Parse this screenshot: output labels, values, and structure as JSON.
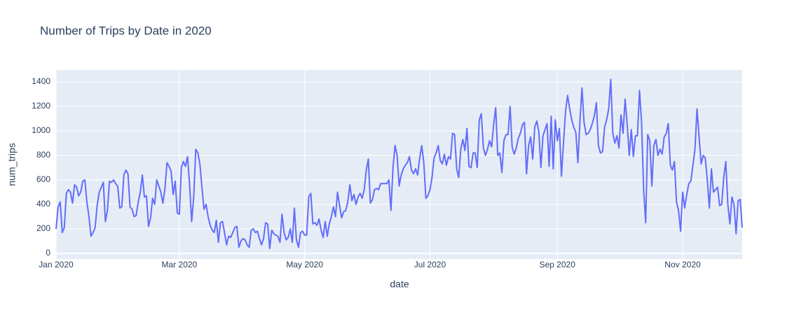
{
  "chart_data": {
    "type": "line",
    "title": "Number of Trips by Date in 2020",
    "x_label": "date",
    "y_label": "num_trips",
    "x": [
      "2020-01-01",
      "2020-01-02",
      "2020-01-03",
      "2020-01-04",
      "2020-01-05",
      "2020-01-06",
      "2020-01-07",
      "2020-01-08",
      "2020-01-09",
      "2020-01-10",
      "2020-01-11",
      "2020-01-12",
      "2020-01-13",
      "2020-01-14",
      "2020-01-15",
      "2020-01-16",
      "2020-01-17",
      "2020-01-18",
      "2020-01-19",
      "2020-01-20",
      "2020-01-21",
      "2020-01-22",
      "2020-01-23",
      "2020-01-24",
      "2020-01-25",
      "2020-01-26",
      "2020-01-27",
      "2020-01-28",
      "2020-01-29",
      "2020-01-30",
      "2020-01-31",
      "2020-02-01",
      "2020-02-02",
      "2020-02-03",
      "2020-02-04",
      "2020-02-05",
      "2020-02-06",
      "2020-02-07",
      "2020-02-08",
      "2020-02-09",
      "2020-02-10",
      "2020-02-11",
      "2020-02-12",
      "2020-02-13",
      "2020-02-14",
      "2020-02-15",
      "2020-02-16",
      "2020-02-17",
      "2020-02-18",
      "2020-02-19",
      "2020-02-20",
      "2020-02-21",
      "2020-02-22",
      "2020-02-23",
      "2020-02-24",
      "2020-02-25",
      "2020-02-26",
      "2020-02-27",
      "2020-02-28",
      "2020-02-29",
      "2020-03-01",
      "2020-03-02",
      "2020-03-03",
      "2020-03-04",
      "2020-03-05",
      "2020-03-06",
      "2020-03-07",
      "2020-03-08",
      "2020-03-09",
      "2020-03-10",
      "2020-03-11",
      "2020-03-12",
      "2020-03-13",
      "2020-03-14",
      "2020-03-15",
      "2020-03-16",
      "2020-03-17",
      "2020-03-18",
      "2020-03-19",
      "2020-03-20",
      "2020-03-21",
      "2020-03-22",
      "2020-03-23",
      "2020-03-24",
      "2020-03-25",
      "2020-03-26",
      "2020-03-27",
      "2020-03-28",
      "2020-03-29",
      "2020-03-30",
      "2020-03-31",
      "2020-04-01",
      "2020-04-02",
      "2020-04-03",
      "2020-04-04",
      "2020-04-05",
      "2020-04-06",
      "2020-04-07",
      "2020-04-08",
      "2020-04-09",
      "2020-04-10",
      "2020-04-11",
      "2020-04-12",
      "2020-04-13",
      "2020-04-14",
      "2020-04-15",
      "2020-04-16",
      "2020-04-17",
      "2020-04-18",
      "2020-04-19",
      "2020-04-20",
      "2020-04-21",
      "2020-04-22",
      "2020-04-23",
      "2020-04-24",
      "2020-04-25",
      "2020-04-26",
      "2020-04-27",
      "2020-04-28",
      "2020-04-29",
      "2020-04-30",
      "2020-05-01",
      "2020-05-02",
      "2020-05-03",
      "2020-05-04",
      "2020-05-05",
      "2020-05-06",
      "2020-05-07",
      "2020-05-08",
      "2020-05-09",
      "2020-05-10",
      "2020-05-11",
      "2020-05-12",
      "2020-05-13",
      "2020-05-14",
      "2020-05-15",
      "2020-05-16",
      "2020-05-17",
      "2020-05-18",
      "2020-05-19",
      "2020-05-20",
      "2020-05-21",
      "2020-05-22",
      "2020-05-23",
      "2020-05-24",
      "2020-05-25",
      "2020-05-26",
      "2020-05-27",
      "2020-05-28",
      "2020-05-29",
      "2020-05-30",
      "2020-05-31",
      "2020-06-01",
      "2020-06-02",
      "2020-06-03",
      "2020-06-04",
      "2020-06-05",
      "2020-06-06",
      "2020-06-07",
      "2020-06-08",
      "2020-06-09",
      "2020-06-10",
      "2020-06-11",
      "2020-06-12",
      "2020-06-13",
      "2020-06-14",
      "2020-06-15",
      "2020-06-16",
      "2020-06-17",
      "2020-06-18",
      "2020-06-19",
      "2020-06-20",
      "2020-06-21",
      "2020-06-22",
      "2020-06-23",
      "2020-06-24",
      "2020-06-25",
      "2020-06-26",
      "2020-06-27",
      "2020-06-28",
      "2020-06-29",
      "2020-06-30",
      "2020-07-01",
      "2020-07-02",
      "2020-07-03",
      "2020-07-04",
      "2020-07-05",
      "2020-07-06",
      "2020-07-07",
      "2020-07-08",
      "2020-07-09",
      "2020-07-10",
      "2020-07-11",
      "2020-07-12",
      "2020-07-13",
      "2020-07-14",
      "2020-07-15",
      "2020-07-16",
      "2020-07-17",
      "2020-07-18",
      "2020-07-19",
      "2020-07-20",
      "2020-07-21",
      "2020-07-22",
      "2020-07-23",
      "2020-07-24",
      "2020-07-25",
      "2020-07-26",
      "2020-07-27",
      "2020-07-28",
      "2020-07-29",
      "2020-07-30",
      "2020-07-31",
      "2020-08-01",
      "2020-08-02",
      "2020-08-03",
      "2020-08-04",
      "2020-08-05",
      "2020-08-06",
      "2020-08-07",
      "2020-08-08",
      "2020-08-09",
      "2020-08-10",
      "2020-08-11",
      "2020-08-12",
      "2020-08-13",
      "2020-08-14",
      "2020-08-15",
      "2020-08-16",
      "2020-08-17",
      "2020-08-18",
      "2020-08-19",
      "2020-08-20",
      "2020-08-21",
      "2020-08-22",
      "2020-08-23",
      "2020-08-24",
      "2020-08-25",
      "2020-08-26",
      "2020-08-27",
      "2020-08-28",
      "2020-08-29",
      "2020-08-30",
      "2020-08-31",
      "2020-09-01",
      "2020-09-02",
      "2020-09-03",
      "2020-09-04",
      "2020-09-05",
      "2020-09-06",
      "2020-09-07",
      "2020-09-08",
      "2020-09-09",
      "2020-09-10",
      "2020-09-11",
      "2020-09-12",
      "2020-09-13",
      "2020-09-14",
      "2020-09-15",
      "2020-09-16",
      "2020-09-17",
      "2020-09-18",
      "2020-09-19",
      "2020-09-20",
      "2020-09-21",
      "2020-09-22",
      "2020-09-23",
      "2020-09-24",
      "2020-09-25",
      "2020-09-26",
      "2020-09-27",
      "2020-09-28",
      "2020-09-29",
      "2020-09-30",
      "2020-10-01",
      "2020-10-02",
      "2020-10-03",
      "2020-10-04",
      "2020-10-05",
      "2020-10-06",
      "2020-10-07",
      "2020-10-08",
      "2020-10-09",
      "2020-10-10",
      "2020-10-11",
      "2020-10-12",
      "2020-10-13",
      "2020-10-14",
      "2020-10-15",
      "2020-10-16",
      "2020-10-17",
      "2020-10-18",
      "2020-10-19",
      "2020-10-20",
      "2020-10-21",
      "2020-10-22",
      "2020-10-23",
      "2020-10-24",
      "2020-10-25",
      "2020-10-26",
      "2020-10-27",
      "2020-10-28",
      "2020-10-29",
      "2020-10-30",
      "2020-10-31",
      "2020-11-01",
      "2020-11-02",
      "2020-11-03",
      "2020-11-04",
      "2020-11-05",
      "2020-11-06",
      "2020-11-07",
      "2020-11-08",
      "2020-11-09",
      "2020-11-10",
      "2020-11-11",
      "2020-11-12",
      "2020-11-13",
      "2020-11-14",
      "2020-11-15",
      "2020-11-16",
      "2020-11-17",
      "2020-11-18",
      "2020-11-19",
      "2020-11-20",
      "2020-11-21",
      "2020-11-22",
      "2020-11-23",
      "2020-11-24",
      "2020-11-25",
      "2020-11-26",
      "2020-11-27",
      "2020-11-28",
      "2020-11-29",
      "2020-11-30"
    ],
    "series": [
      {
        "name": "num_trips",
        "color": "#636efa",
        "values": [
          200,
          380,
          420,
          170,
          210,
          490,
          520,
          500,
          410,
          560,
          540,
          470,
          500,
          590,
          600,
          420,
          300,
          140,
          170,
          210,
          390,
          500,
          540,
          580,
          260,
          350,
          590,
          580,
          600,
          570,
          550,
          370,
          380,
          640,
          680,
          650,
          380,
          360,
          300,
          310,
          420,
          500,
          640,
          460,
          470,
          220,
          290,
          450,
          400,
          600,
          550,
          500,
          410,
          530,
          740,
          710,
          670,
          480,
          590,
          330,
          320,
          700,
          750,
          710,
          790,
          560,
          260,
          460,
          850,
          820,
          730,
          540,
          360,
          400,
          300,
          230,
          190,
          170,
          270,
          90,
          250,
          260,
          170,
          70,
          140,
          130,
          170,
          210,
          220,
          50,
          100,
          120,
          110,
          70,
          50,
          190,
          200,
          170,
          180,
          120,
          70,
          120,
          250,
          240,
          40,
          190,
          160,
          150,
          140,
          90,
          320,
          170,
          110,
          130,
          200,
          90,
          370,
          110,
          50,
          170,
          180,
          150,
          150,
          460,
          490,
          240,
          250,
          230,
          280,
          190,
          130,
          260,
          140,
          240,
          300,
          380,
          300,
          500,
          390,
          290,
          340,
          350,
          420,
          560,
          430,
          480,
          400,
          460,
          490,
          450,
          520,
          680,
          770,
          410,
          440,
          520,
          530,
          520,
          570,
          570,
          570,
          570,
          600,
          350,
          700,
          880,
          800,
          550,
          640,
          690,
          720,
          740,
          790,
          680,
          650,
          690,
          640,
          780,
          880,
          740,
          450,
          470,
          520,
          620,
          780,
          820,
          880,
          760,
          730,
          810,
          720,
          790,
          770,
          980,
          970,
          690,
          620,
          850,
          930,
          840,
          1020,
          710,
          700,
          820,
          820,
          700,
          1090,
          1140,
          860,
          800,
          850,
          920,
          870,
          1050,
          1190,
          800,
          820,
          660,
          920,
          970,
          970,
          1200,
          870,
          810,
          860,
          940,
          980,
          1050,
          1070,
          650,
          880,
          950,
          770,
          1030,
          1080,
          990,
          700,
          960,
          1010,
          1060,
          710,
          1120,
          690,
          1090,
          920,
          1020,
          630,
          900,
          1160,
          1290,
          1180,
          1090,
          1030,
          990,
          740,
          1080,
          1350,
          1070,
          970,
          980,
          1010,
          1060,
          1120,
          1230,
          880,
          820,
          830,
          1030,
          1090,
          1180,
          1420,
          980,
          900,
          960,
          860,
          1130,
          980,
          1260,
          1050,
          800,
          1010,
          790,
          960,
          960,
          1330,
          1070,
          520,
          250,
          970,
          920,
          550,
          880,
          930,
          800,
          850,
          810,
          950,
          980,
          1060,
          720,
          680,
          750,
          420,
          350,
          180,
          500,
          370,
          480,
          570,
          590,
          720,
          850,
          1180,
          950,
          730,
          800,
          780,
          600,
          370,
          690,
          500,
          520,
          540,
          390,
          400,
          620,
          750,
          400,
          240,
          460,
          400,
          160,
          430,
          440,
          210
        ]
      }
    ],
    "xlim": [
      "2020-01-01",
      "2020-11-30"
    ],
    "xticks": [
      {
        "value": "2020-01-01",
        "label": "Jan 2020"
      },
      {
        "value": "2020-03-01",
        "label": "Mar 2020"
      },
      {
        "value": "2020-05-01",
        "label": "May 2020"
      },
      {
        "value": "2020-07-01",
        "label": "Jul 2020"
      },
      {
        "value": "2020-09-01",
        "label": "Sep 2020"
      },
      {
        "value": "2020-11-01",
        "label": "Nov 2020"
      }
    ],
    "ylim": [
      -46,
      1497
    ],
    "yticks": [
      0,
      200,
      400,
      600,
      800,
      1000,
      1200,
      1400
    ],
    "grid": true,
    "background": "#e5ecf6"
  }
}
